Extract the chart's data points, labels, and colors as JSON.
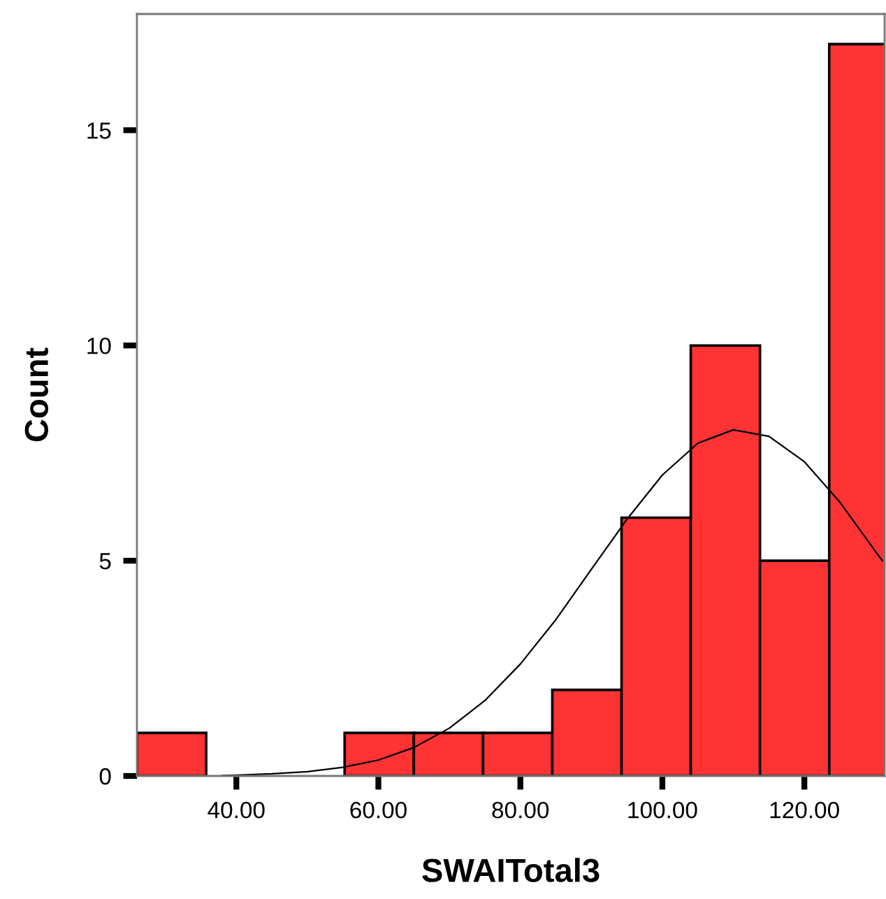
{
  "chart_data": {
    "type": "histogram",
    "xlabel": "SWAITotal3",
    "ylabel": "Count",
    "series": [
      {
        "color": "#ff3333",
        "bins": [
          26,
          35.75,
          45.5,
          55.25,
          65,
          74.75,
          84.5,
          94.25,
          104,
          113.75,
          123.5,
          133.25
        ],
        "values": [
          1,
          0,
          0,
          1,
          1,
          1,
          2,
          6,
          10,
          5,
          17
        ]
      },
      {
        "type": "line",
        "color": "#000000",
        "x": [
          38,
          40,
          45,
          50,
          55,
          60,
          65,
          70,
          75,
          80,
          85,
          90,
          95,
          100,
          105,
          110,
          115,
          120,
          125,
          130,
          131
        ],
        "values": [
          0.01,
          0.02,
          0.05,
          0.1,
          0.2,
          0.37,
          0.66,
          1.11,
          1.75,
          2.6,
          3.63,
          4.8,
          5.96,
          6.99,
          7.73,
          8.04,
          7.89,
          7.3,
          6.36,
          5.22,
          5.0
        ]
      }
    ],
    "xlim": [
      26,
      131.3
    ],
    "ylim": [
      0,
      17.7
    ],
    "xticks": [
      {
        "value": 40,
        "label": "40.00"
      },
      {
        "value": 60,
        "label": "60.00"
      },
      {
        "value": 80,
        "label": "80.00"
      },
      {
        "value": 100,
        "label": "100.00"
      },
      {
        "value": 120,
        "label": "120.00"
      }
    ],
    "yticks": [
      0,
      5,
      10,
      15
    ]
  }
}
